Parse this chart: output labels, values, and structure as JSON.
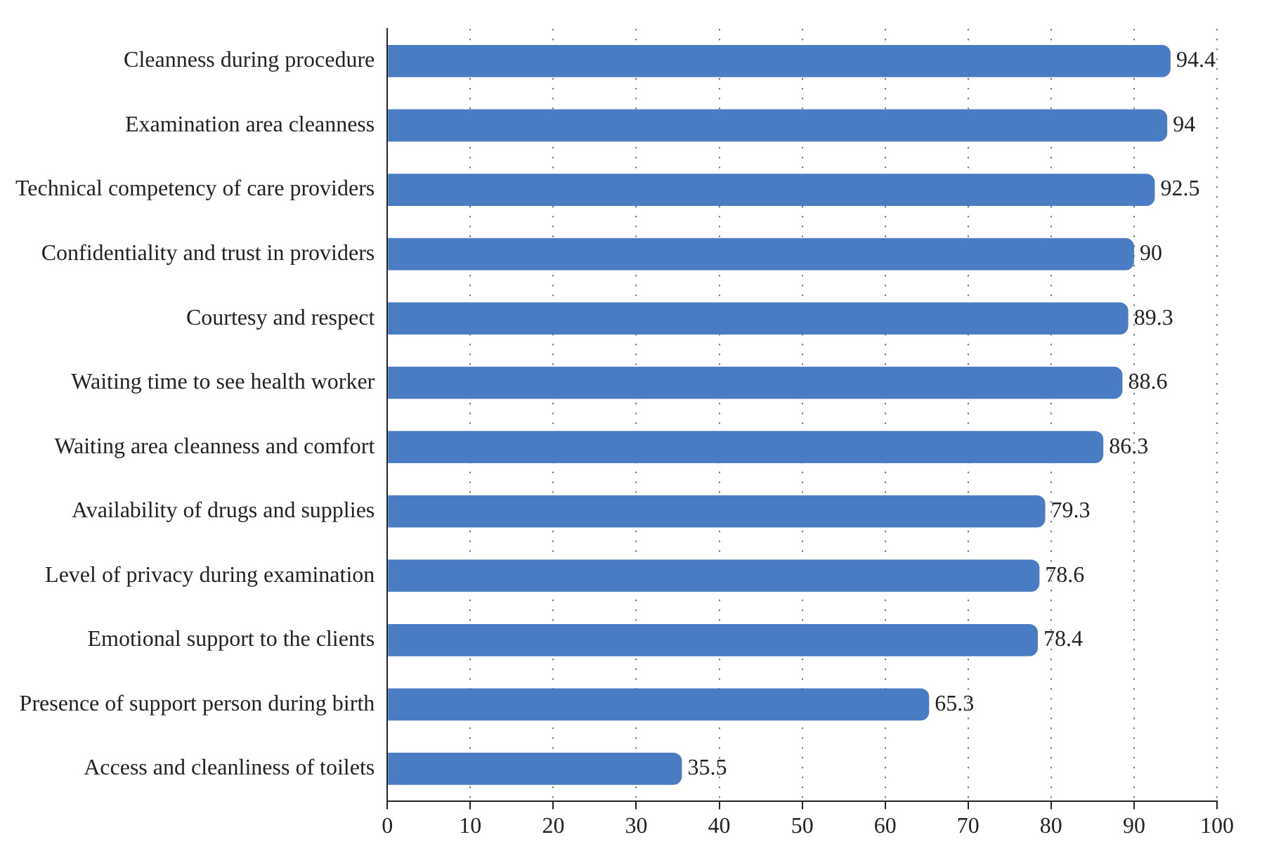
{
  "chart_data": {
    "type": "bar",
    "orientation": "horizontal",
    "categories": [
      "Cleanness during procedure",
      "Examination area cleanness",
      "Technical competency of care providers",
      "Confidentiality and trust in providers",
      "Courtesy and respect",
      "Waiting time to see health worker",
      "Waiting area cleanness and comfort",
      "Availability of drugs and supplies",
      "Level of privacy during examination",
      "Emotional support to the clients",
      "Presence of support person during birth",
      "Access and cleanliness of toilets"
    ],
    "values": [
      94.4,
      94,
      92.5,
      90,
      89.3,
      88.6,
      86.3,
      79.3,
      78.6,
      78.4,
      65.3,
      35.5
    ],
    "color": "#4a7cc4",
    "xlim": [
      0,
      100
    ],
    "xticks": [
      0,
      10,
      20,
      30,
      40,
      50,
      60,
      70,
      80,
      90,
      100
    ],
    "grid": "x",
    "data_labels": true
  }
}
